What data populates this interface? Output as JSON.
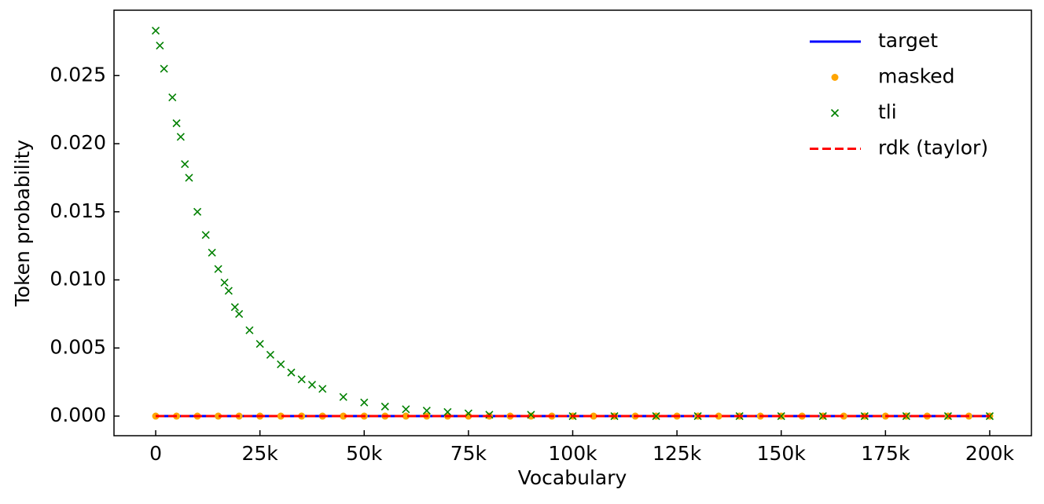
{
  "chart_data": {
    "type": "scatter",
    "x_label": "Vocabulary",
    "y_label": "Token probability",
    "xlim": [
      -10000,
      210000
    ],
    "ylim": [
      -0.00144,
      0.0298
    ],
    "xticks": [
      0,
      {
        "value": 25000,
        "label": "25k"
      },
      {
        "value": 50000,
        "label": "50k"
      },
      {
        "value": 75000,
        "label": "75k"
      },
      {
        "value": 100000,
        "label": "100k"
      },
      {
        "value": 125000,
        "label": "125k"
      },
      {
        "value": 150000,
        "label": "150k"
      },
      {
        "value": 175000,
        "label": "175k"
      },
      {
        "value": 200000,
        "label": "200k"
      }
    ],
    "yticks": [
      {
        "value": 0,
        "label": "0.000"
      },
      {
        "value": 0.005,
        "label": "0.005"
      },
      {
        "value": 0.01,
        "label": "0.010"
      },
      {
        "value": 0.015,
        "label": "0.015"
      },
      {
        "value": 0.02,
        "label": "0.020"
      },
      {
        "value": 0.025,
        "label": "0.025"
      }
    ],
    "legend": "upper right",
    "series": [
      {
        "name": "target",
        "kind": "line",
        "linestyle": "solid",
        "color": "#0000ff",
        "x": [
          0,
          50000,
          100000,
          150000,
          200000
        ],
        "values": [
          0,
          0,
          0,
          0,
          0
        ]
      },
      {
        "name": "masked",
        "kind": "scatter",
        "marker": "o",
        "color": "#ffa500",
        "x": [
          0,
          5000,
          10000,
          15000,
          20000,
          25000,
          30000,
          35000,
          40000,
          45000,
          50000,
          55000,
          60000,
          65000,
          70000,
          75000,
          80000,
          85000,
          90000,
          95000,
          100000,
          105000,
          110000,
          115000,
          120000,
          125000,
          130000,
          135000,
          140000,
          145000,
          150000,
          155000,
          160000,
          165000,
          170000,
          175000,
          180000,
          185000,
          190000,
          195000,
          200000
        ],
        "values": [
          0,
          0,
          0,
          0,
          0,
          0,
          0,
          0,
          0,
          0,
          0,
          0,
          0,
          0,
          0,
          0,
          0,
          0,
          0,
          0,
          0,
          0,
          0,
          0,
          0,
          0,
          0,
          0,
          0,
          0,
          0,
          0,
          0,
          0,
          0,
          0,
          0,
          0,
          0,
          0,
          0
        ]
      },
      {
        "name": "tli",
        "kind": "scatter",
        "marker": "x",
        "color": "#008000",
        "x": [
          0,
          1000,
          2000,
          4000,
          5000,
          6000,
          7000,
          8000,
          10000,
          12000,
          13500,
          15000,
          16500,
          17500,
          19000,
          20000,
          22500,
          25000,
          27500,
          30000,
          32500,
          35000,
          37500,
          40000,
          45000,
          50000,
          55000,
          60000,
          65000,
          70000,
          75000,
          80000,
          90000,
          100000,
          110000,
          120000,
          130000,
          140000,
          150000,
          160000,
          170000,
          180000,
          190000,
          200000
        ],
        "values": [
          0.0283,
          0.0272,
          0.0255,
          0.0234,
          0.0215,
          0.0205,
          0.0185,
          0.0175,
          0.015,
          0.0133,
          0.012,
          0.0108,
          0.0098,
          0.0092,
          0.008,
          0.0075,
          0.0063,
          0.0053,
          0.0045,
          0.0038,
          0.0032,
          0.0027,
          0.0023,
          0.002,
          0.0014,
          0.001,
          0.0007,
          0.0005,
          0.0004,
          0.0003,
          0.0002,
          0.0001,
          0.0001,
          0,
          0,
          0,
          0,
          0,
          0,
          0,
          0,
          0,
          0,
          0
        ]
      },
      {
        "name": "rdk (taylor)",
        "kind": "line",
        "linestyle": "dashed",
        "color": "#ff0000",
        "x": [
          0,
          50000,
          100000,
          150000,
          200000
        ],
        "values": [
          0,
          0,
          0,
          0,
          0
        ]
      }
    ]
  }
}
